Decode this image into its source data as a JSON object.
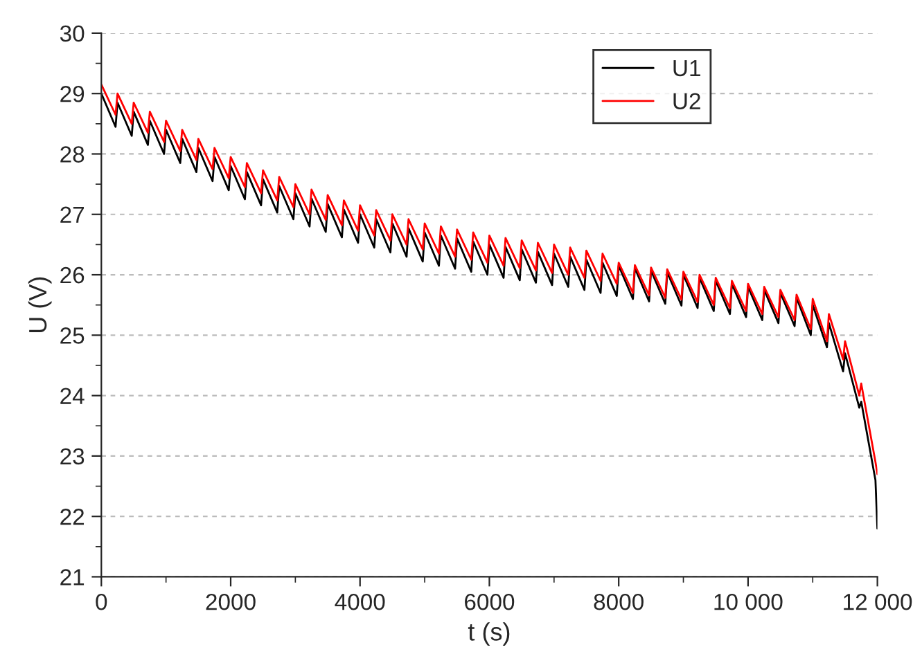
{
  "chart_data": {
    "type": "line",
    "xlabel": "t (s)",
    "ylabel": "U (V)",
    "xlim": [
      0,
      12000
    ],
    "ylim": [
      21,
      30
    ],
    "xticks": [
      0,
      2000,
      4000,
      6000,
      8000,
      {
        "value": 10000,
        "label": "10 000"
      },
      {
        "value": 12000,
        "label": "12 000"
      }
    ],
    "yticks": [
      21,
      22,
      23,
      24,
      25,
      26,
      27,
      28,
      29,
      30
    ],
    "grid": "y",
    "legend": "top right",
    "marker": "none",
    "line_style": "solid",
    "series": [
      {
        "name": "U1",
        "color": "#000000",
        "x": [
          0,
          220,
          250,
          470,
          500,
          720,
          750,
          970,
          1000,
          1220,
          1250,
          1470,
          1500,
          1720,
          1750,
          1970,
          2000,
          2220,
          2250,
          2470,
          2500,
          2720,
          2750,
          2970,
          3000,
          3220,
          3250,
          3470,
          3500,
          3720,
          3750,
          3970,
          4000,
          4220,
          4250,
          4470,
          4500,
          4720,
          4750,
          4970,
          5000,
          5220,
          5250,
          5470,
          5500,
          5720,
          5750,
          5970,
          6000,
          6220,
          6250,
          6470,
          6500,
          6720,
          6750,
          6970,
          7000,
          7220,
          7250,
          7470,
          7500,
          7720,
          7750,
          7970,
          8000,
          8220,
          8250,
          8470,
          8500,
          8720,
          8750,
          8970,
          9000,
          9220,
          9250,
          9470,
          9500,
          9720,
          9750,
          9970,
          10000,
          10220,
          10250,
          10470,
          10500,
          10720,
          10750,
          10970,
          11000,
          11220,
          11250,
          11470,
          11500,
          11720,
          11750,
          11970,
          12000
        ],
        "values": [
          29.0,
          28.45,
          28.85,
          28.3,
          28.7,
          28.15,
          28.55,
          28.0,
          28.4,
          27.85,
          28.25,
          27.7,
          28.1,
          27.55,
          27.95,
          27.4,
          27.8,
          27.25,
          27.7,
          27.15,
          27.58,
          27.03,
          27.47,
          26.92,
          27.35,
          26.8,
          27.26,
          26.71,
          27.17,
          26.62,
          27.08,
          26.53,
          27.0,
          26.45,
          26.92,
          26.37,
          26.85,
          26.3,
          26.77,
          26.22,
          26.7,
          26.15,
          26.65,
          26.1,
          26.6,
          26.05,
          26.55,
          26.0,
          26.5,
          25.95,
          26.46,
          25.91,
          26.42,
          25.87,
          26.38,
          25.83,
          26.35,
          25.8,
          26.3,
          25.75,
          26.25,
          25.7,
          26.2,
          25.65,
          26.15,
          25.6,
          26.11,
          25.56,
          26.07,
          25.52,
          26.04,
          25.49,
          26.0,
          25.45,
          25.95,
          25.4,
          25.9,
          25.35,
          25.85,
          25.3,
          25.8,
          25.25,
          25.75,
          25.2,
          25.7,
          25.15,
          25.62,
          25.0,
          25.5,
          24.8,
          25.2,
          24.4,
          24.7,
          23.8,
          23.9,
          22.6,
          21.8
        ]
      },
      {
        "name": "U2",
        "color": "#ff0000",
        "x": [
          0,
          220,
          250,
          470,
          500,
          720,
          750,
          970,
          1000,
          1220,
          1250,
          1470,
          1500,
          1720,
          1750,
          1970,
          2000,
          2220,
          2250,
          2470,
          2500,
          2720,
          2750,
          2970,
          3000,
          3220,
          3250,
          3470,
          3500,
          3720,
          3750,
          3970,
          4000,
          4220,
          4250,
          4470,
          4500,
          4720,
          4750,
          4970,
          5000,
          5220,
          5250,
          5470,
          5500,
          5720,
          5750,
          5970,
          6000,
          6220,
          6250,
          6470,
          6500,
          6720,
          6750,
          6970,
          7000,
          7220,
          7250,
          7470,
          7500,
          7720,
          7750,
          7970,
          8000,
          8220,
          8250,
          8470,
          8500,
          8720,
          8750,
          8970,
          9000,
          9220,
          9250,
          9470,
          9500,
          9720,
          9750,
          9970,
          10000,
          10220,
          10250,
          10470,
          10500,
          10720,
          10750,
          10970,
          11000,
          11220,
          11250,
          11470,
          11500,
          11720,
          11750,
          11970,
          12000
        ],
        "values": [
          29.15,
          28.65,
          29.0,
          28.5,
          28.85,
          28.35,
          28.7,
          28.2,
          28.55,
          28.05,
          28.4,
          27.9,
          28.25,
          27.75,
          28.1,
          27.6,
          27.95,
          27.45,
          27.85,
          27.35,
          27.73,
          27.23,
          27.62,
          27.12,
          27.5,
          27.0,
          27.41,
          26.91,
          27.32,
          26.82,
          27.23,
          26.73,
          27.15,
          26.65,
          27.07,
          26.57,
          27.0,
          26.5,
          26.92,
          26.42,
          26.85,
          26.35,
          26.8,
          26.3,
          26.75,
          26.25,
          26.7,
          26.2,
          26.65,
          26.15,
          26.61,
          26.11,
          26.57,
          26.07,
          26.53,
          26.03,
          26.5,
          26.0,
          26.45,
          25.95,
          26.4,
          25.9,
          26.35,
          25.85,
          26.2,
          25.7,
          26.16,
          25.66,
          26.12,
          25.62,
          26.09,
          25.59,
          26.05,
          25.55,
          26.0,
          25.5,
          25.95,
          25.45,
          25.9,
          25.4,
          25.85,
          25.35,
          25.8,
          25.3,
          25.75,
          25.25,
          25.67,
          25.1,
          25.6,
          24.9,
          25.35,
          24.6,
          24.9,
          24.0,
          24.2,
          22.9,
          22.7
        ]
      }
    ]
  }
}
